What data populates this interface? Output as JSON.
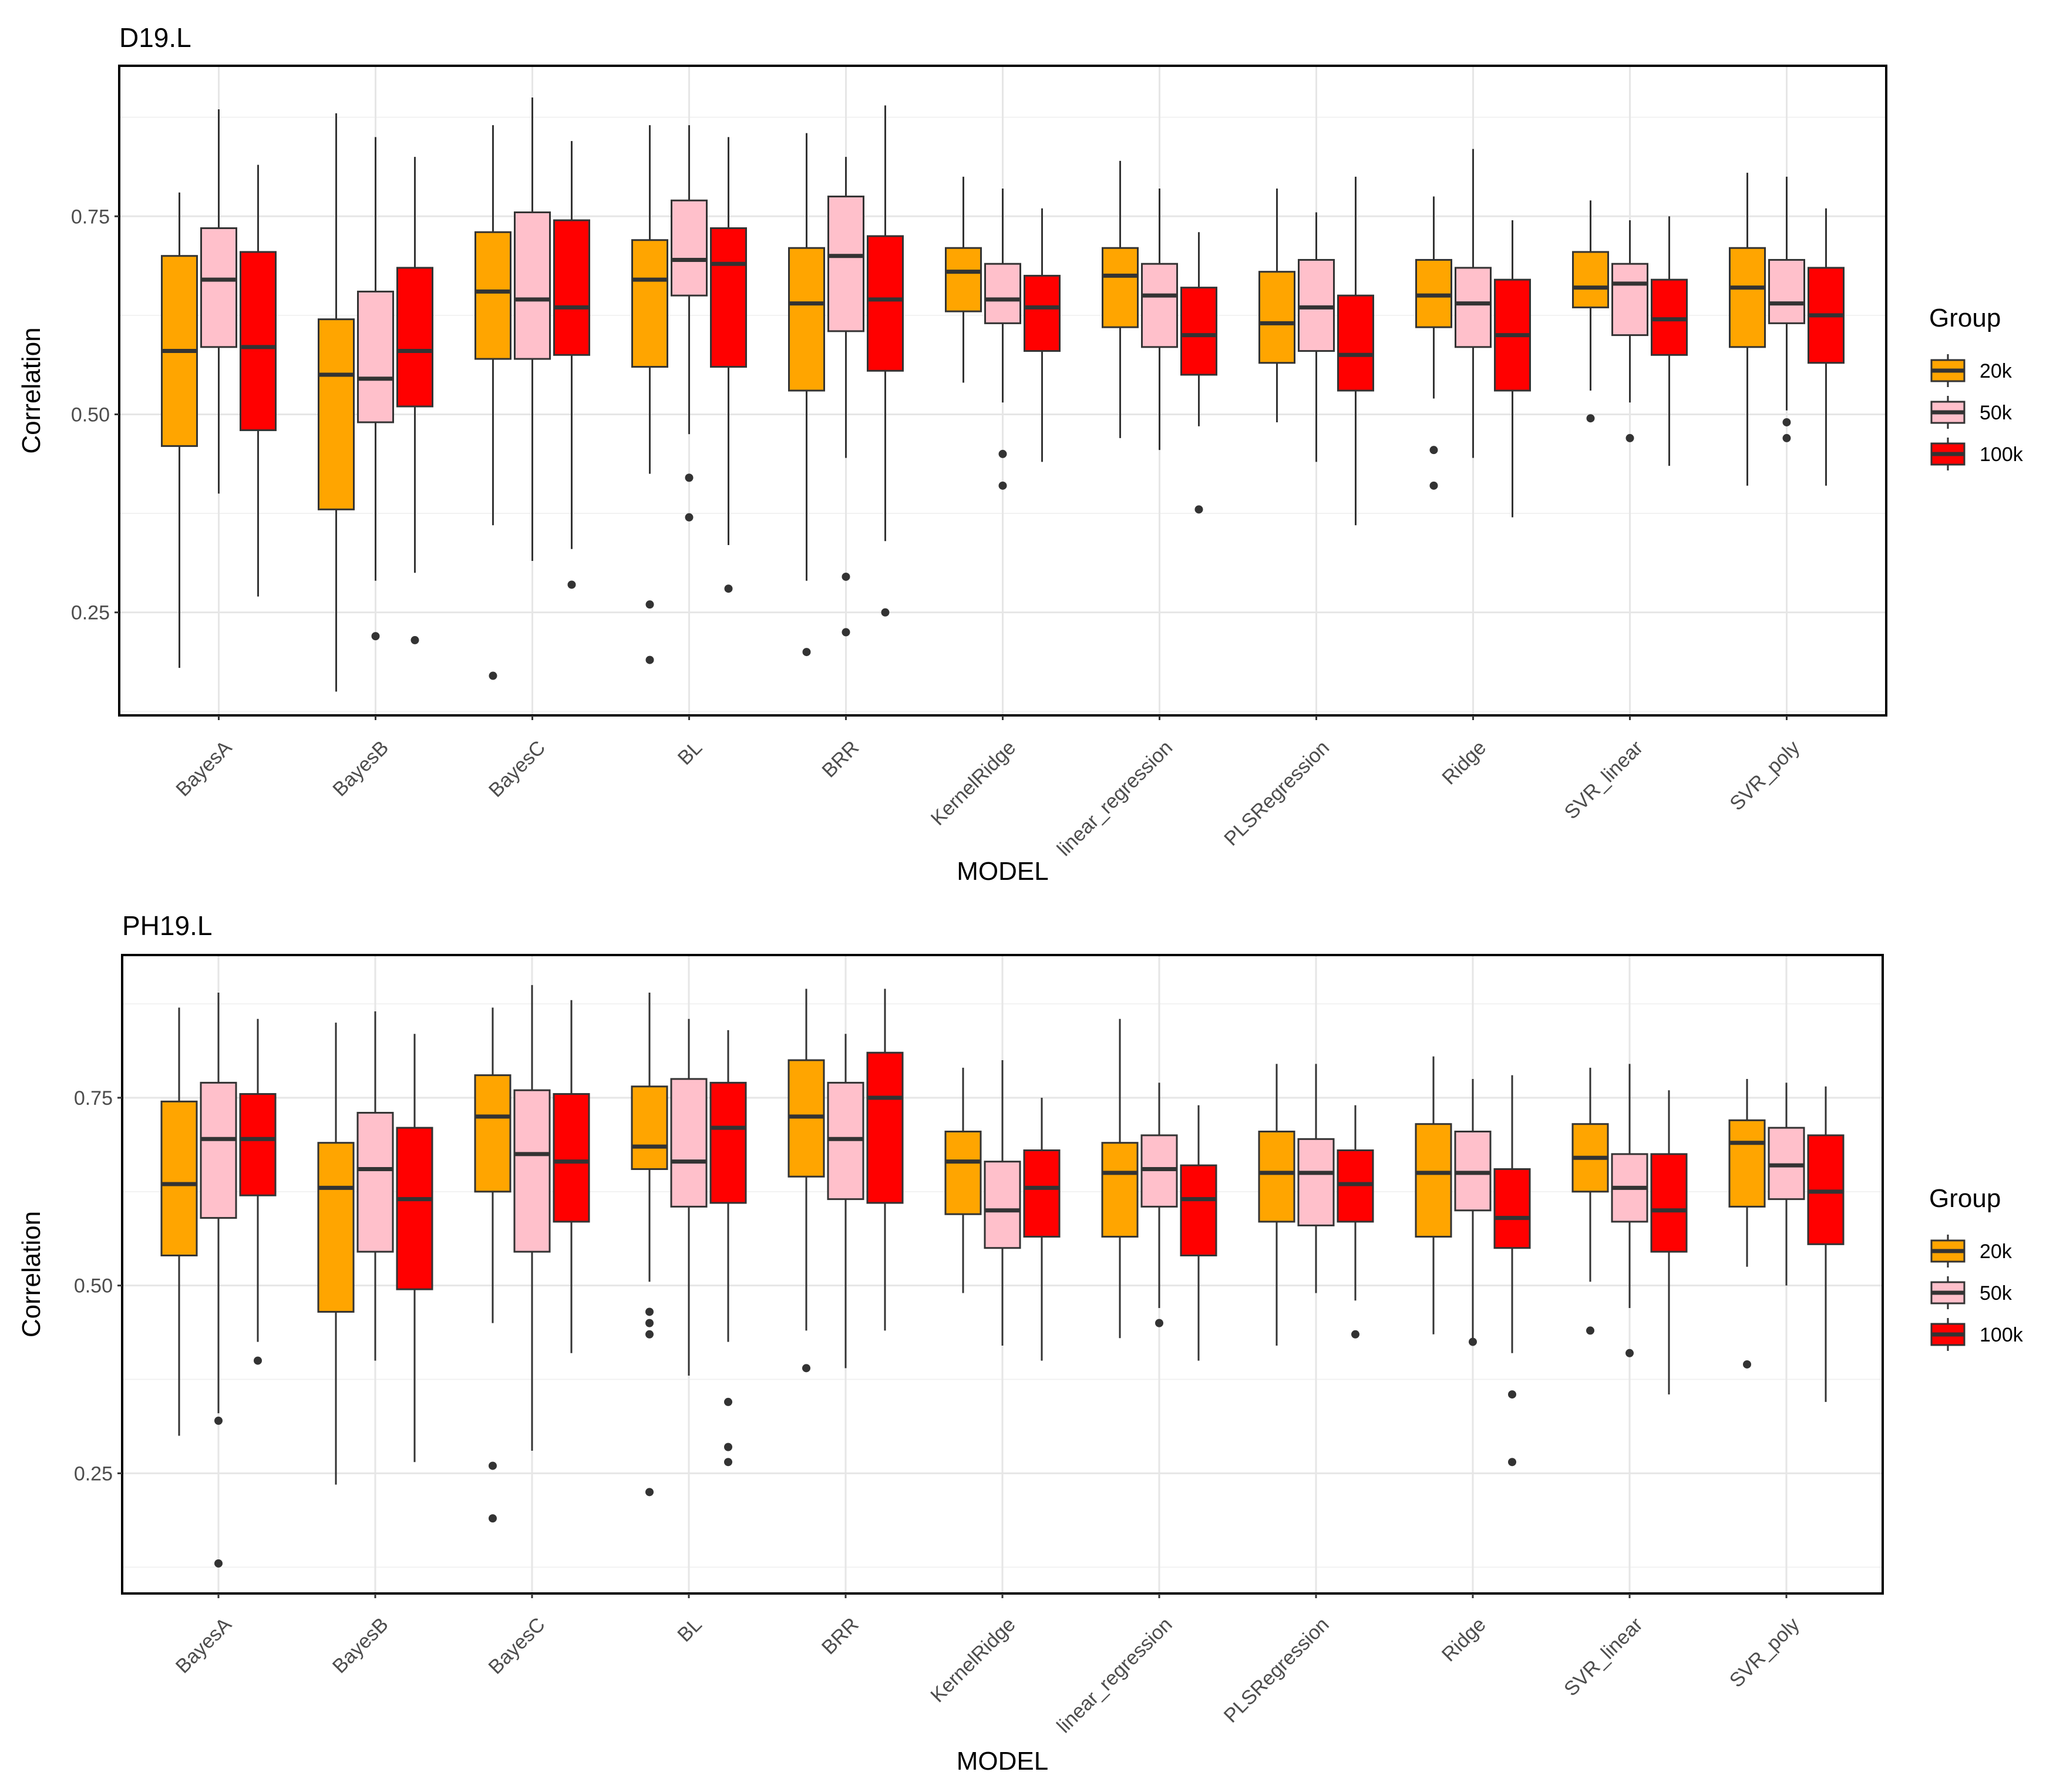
{
  "legend": {
    "title": "Group",
    "items": [
      {
        "label": "20k",
        "color": "#FFA500"
      },
      {
        "label": "50k",
        "color": "#FFC0CB"
      },
      {
        "label": "100k",
        "color": "#FF0000"
      }
    ]
  },
  "chart_data": [
    {
      "type": "boxplot",
      "title": "D19.L",
      "xlabel": "MODEL",
      "ylabel": "Correlation",
      "ylim": [
        0.12,
        0.94
      ],
      "yticks": [
        0.25,
        0.5,
        0.75
      ],
      "ytick_labels": [
        "0.25",
        "0.50",
        "0.75"
      ],
      "grid": true,
      "legend_position": "right",
      "categories": [
        "BayesA",
        "BayesB",
        "BayesC",
        "BL",
        "BRR",
        "KernelRidge",
        "linear_regression",
        "PLSRegression",
        "Ridge",
        "SVR_linear",
        "SVR_poly"
      ],
      "series": [
        {
          "name": "20k",
          "boxes": [
            {
              "lo": 0.18,
              "q1": 0.46,
              "med": 0.58,
              "q3": 0.7,
              "hi": 0.78,
              "out": []
            },
            {
              "lo": 0.15,
              "q1": 0.38,
              "med": 0.55,
              "q3": 0.62,
              "hi": 0.88,
              "out": []
            },
            {
              "lo": 0.36,
              "q1": 0.57,
              "med": 0.655,
              "q3": 0.73,
              "hi": 0.865,
              "out": [
                0.17
              ]
            },
            {
              "lo": 0.425,
              "q1": 0.56,
              "med": 0.67,
              "q3": 0.72,
              "hi": 0.865,
              "out": [
                0.26,
                0.19
              ]
            },
            {
              "lo": 0.29,
              "q1": 0.53,
              "med": 0.64,
              "q3": 0.71,
              "hi": 0.855,
              "out": [
                0.2
              ]
            },
            {
              "lo": 0.54,
              "q1": 0.63,
              "med": 0.68,
              "q3": 0.71,
              "hi": 0.8,
              "out": []
            },
            {
              "lo": 0.47,
              "q1": 0.61,
              "med": 0.675,
              "q3": 0.71,
              "hi": 0.82,
              "out": []
            },
            {
              "lo": 0.49,
              "q1": 0.565,
              "med": 0.615,
              "q3": 0.68,
              "hi": 0.785,
              "out": []
            },
            {
              "lo": 0.52,
              "q1": 0.61,
              "med": 0.65,
              "q3": 0.695,
              "hi": 0.775,
              "out": [
                0.455,
                0.41
              ]
            },
            {
              "lo": 0.53,
              "q1": 0.635,
              "med": 0.66,
              "q3": 0.705,
              "hi": 0.77,
              "out": [
                0.495
              ]
            },
            {
              "lo": 0.41,
              "q1": 0.585,
              "med": 0.66,
              "q3": 0.71,
              "hi": 0.805,
              "out": []
            }
          ]
        },
        {
          "name": "50k",
          "boxes": [
            {
              "lo": 0.4,
              "q1": 0.585,
              "med": 0.67,
              "q3": 0.735,
              "hi": 0.885,
              "out": []
            },
            {
              "lo": 0.29,
              "q1": 0.49,
              "med": 0.545,
              "q3": 0.655,
              "hi": 0.85,
              "out": [
                0.22
              ]
            },
            {
              "lo": 0.315,
              "q1": 0.57,
              "med": 0.645,
              "q3": 0.755,
              "hi": 0.9,
              "out": []
            },
            {
              "lo": 0.475,
              "q1": 0.65,
              "med": 0.695,
              "q3": 0.77,
              "hi": 0.865,
              "out": [
                0.42,
                0.37
              ]
            },
            {
              "lo": 0.445,
              "q1": 0.605,
              "med": 0.7,
              "q3": 0.775,
              "hi": 0.825,
              "out": [
                0.295,
                0.225
              ]
            },
            {
              "lo": 0.515,
              "q1": 0.615,
              "med": 0.645,
              "q3": 0.69,
              "hi": 0.785,
              "out": [
                0.45,
                0.41
              ]
            },
            {
              "lo": 0.455,
              "q1": 0.585,
              "med": 0.65,
              "q3": 0.69,
              "hi": 0.785,
              "out": []
            },
            {
              "lo": 0.44,
              "q1": 0.58,
              "med": 0.635,
              "q3": 0.695,
              "hi": 0.755,
              "out": []
            },
            {
              "lo": 0.445,
              "q1": 0.585,
              "med": 0.64,
              "q3": 0.685,
              "hi": 0.835,
              "out": []
            },
            {
              "lo": 0.515,
              "q1": 0.6,
              "med": 0.665,
              "q3": 0.69,
              "hi": 0.745,
              "out": [
                0.47
              ]
            },
            {
              "lo": 0.505,
              "q1": 0.615,
              "med": 0.64,
              "q3": 0.695,
              "hi": 0.8,
              "out": [
                0.49,
                0.47
              ]
            }
          ]
        },
        {
          "name": "100k",
          "boxes": [
            {
              "lo": 0.27,
              "q1": 0.48,
              "med": 0.585,
              "q3": 0.705,
              "hi": 0.815,
              "out": []
            },
            {
              "lo": 0.3,
              "q1": 0.51,
              "med": 0.58,
              "q3": 0.685,
              "hi": 0.825,
              "out": [
                0.215
              ]
            },
            {
              "lo": 0.33,
              "q1": 0.575,
              "med": 0.635,
              "q3": 0.745,
              "hi": 0.845,
              "out": [
                0.285
              ]
            },
            {
              "lo": 0.335,
              "q1": 0.56,
              "med": 0.69,
              "q3": 0.735,
              "hi": 0.85,
              "out": [
                0.28
              ]
            },
            {
              "lo": 0.34,
              "q1": 0.555,
              "med": 0.645,
              "q3": 0.725,
              "hi": 0.89,
              "out": [
                0.25
              ]
            },
            {
              "lo": 0.44,
              "q1": 0.58,
              "med": 0.635,
              "q3": 0.675,
              "hi": 0.76,
              "out": []
            },
            {
              "lo": 0.485,
              "q1": 0.55,
              "med": 0.6,
              "q3": 0.66,
              "hi": 0.73,
              "out": [
                0.38
              ]
            },
            {
              "lo": 0.36,
              "q1": 0.53,
              "med": 0.575,
              "q3": 0.65,
              "hi": 0.8,
              "out": []
            },
            {
              "lo": 0.37,
              "q1": 0.53,
              "med": 0.6,
              "q3": 0.67,
              "hi": 0.745,
              "out": []
            },
            {
              "lo": 0.435,
              "q1": 0.575,
              "med": 0.62,
              "q3": 0.67,
              "hi": 0.75,
              "out": []
            },
            {
              "lo": 0.41,
              "q1": 0.565,
              "med": 0.625,
              "q3": 0.685,
              "hi": 0.76,
              "out": []
            }
          ]
        }
      ]
    },
    {
      "type": "boxplot",
      "title": "PH19.L",
      "xlabel": "MODEL",
      "ylabel": "Correlation",
      "ylim": [
        0.09,
        0.94
      ],
      "yticks": [
        0.25,
        0.5,
        0.75
      ],
      "ytick_labels": [
        "0.25",
        "0.50",
        "0.75"
      ],
      "grid": true,
      "legend_position": "right",
      "categories": [
        "BayesA",
        "BayesB",
        "BayesC",
        "BL",
        "BRR",
        "KernelRidge",
        "linear_regression",
        "PLSRegression",
        "Ridge",
        "SVR_linear",
        "SVR_poly"
      ],
      "series": [
        {
          "name": "20k",
          "boxes": [
            {
              "lo": 0.3,
              "q1": 0.54,
              "med": 0.635,
              "q3": 0.745,
              "hi": 0.87,
              "out": []
            },
            {
              "lo": 0.235,
              "q1": 0.465,
              "med": 0.63,
              "q3": 0.69,
              "hi": 0.85,
              "out": []
            },
            {
              "lo": 0.45,
              "q1": 0.625,
              "med": 0.725,
              "q3": 0.78,
              "hi": 0.87,
              "out": [
                0.26,
                0.19
              ]
            },
            {
              "lo": 0.505,
              "q1": 0.655,
              "med": 0.685,
              "q3": 0.765,
              "hi": 0.89,
              "out": [
                0.465,
                0.45,
                0.435,
                0.225
              ]
            },
            {
              "lo": 0.44,
              "q1": 0.645,
              "med": 0.725,
              "q3": 0.8,
              "hi": 0.895,
              "out": [
                0.39
              ]
            },
            {
              "lo": 0.49,
              "q1": 0.595,
              "med": 0.665,
              "q3": 0.705,
              "hi": 0.79,
              "out": []
            },
            {
              "lo": 0.43,
              "q1": 0.565,
              "med": 0.65,
              "q3": 0.69,
              "hi": 0.855,
              "out": []
            },
            {
              "lo": 0.42,
              "q1": 0.585,
              "med": 0.65,
              "q3": 0.705,
              "hi": 0.795,
              "out": []
            },
            {
              "lo": 0.435,
              "q1": 0.565,
              "med": 0.65,
              "q3": 0.715,
              "hi": 0.805,
              "out": []
            },
            {
              "lo": 0.505,
              "q1": 0.625,
              "med": 0.67,
              "q3": 0.715,
              "hi": 0.79,
              "out": [
                0.44
              ]
            },
            {
              "lo": 0.525,
              "q1": 0.605,
              "med": 0.69,
              "q3": 0.72,
              "hi": 0.775,
              "out": [
                0.395
              ]
            }
          ]
        },
        {
          "name": "50k",
          "boxes": [
            {
              "lo": 0.33,
              "q1": 0.59,
              "med": 0.695,
              "q3": 0.77,
              "hi": 0.89,
              "out": [
                0.32,
                0.13
              ]
            },
            {
              "lo": 0.4,
              "q1": 0.545,
              "med": 0.655,
              "q3": 0.73,
              "hi": 0.865,
              "out": []
            },
            {
              "lo": 0.28,
              "q1": 0.545,
              "med": 0.675,
              "q3": 0.76,
              "hi": 0.9,
              "out": []
            },
            {
              "lo": 0.38,
              "q1": 0.605,
              "med": 0.665,
              "q3": 0.775,
              "hi": 0.855,
              "out": []
            },
            {
              "lo": 0.39,
              "q1": 0.615,
              "med": 0.695,
              "q3": 0.77,
              "hi": 0.835,
              "out": []
            },
            {
              "lo": 0.42,
              "q1": 0.55,
              "med": 0.6,
              "q3": 0.665,
              "hi": 0.8,
              "out": []
            },
            {
              "lo": 0.47,
              "q1": 0.605,
              "med": 0.655,
              "q3": 0.7,
              "hi": 0.77,
              "out": [
                0.45
              ]
            },
            {
              "lo": 0.49,
              "q1": 0.58,
              "med": 0.65,
              "q3": 0.695,
              "hi": 0.795,
              "out": []
            },
            {
              "lo": 0.43,
              "q1": 0.6,
              "med": 0.65,
              "q3": 0.705,
              "hi": 0.775,
              "out": [
                0.425
              ]
            },
            {
              "lo": 0.47,
              "q1": 0.585,
              "med": 0.63,
              "q3": 0.675,
              "hi": 0.795,
              "out": [
                0.41
              ]
            },
            {
              "lo": 0.5,
              "q1": 0.615,
              "med": 0.66,
              "q3": 0.71,
              "hi": 0.77,
              "out": []
            }
          ]
        },
        {
          "name": "100k",
          "boxes": [
            {
              "lo": 0.425,
              "q1": 0.62,
              "med": 0.695,
              "q3": 0.755,
              "hi": 0.855,
              "out": [
                0.4
              ]
            },
            {
              "lo": 0.265,
              "q1": 0.495,
              "med": 0.615,
              "q3": 0.71,
              "hi": 0.835,
              "out": []
            },
            {
              "lo": 0.41,
              "q1": 0.585,
              "med": 0.665,
              "q3": 0.755,
              "hi": 0.88,
              "out": []
            },
            {
              "lo": 0.425,
              "q1": 0.61,
              "med": 0.71,
              "q3": 0.77,
              "hi": 0.84,
              "out": [
                0.345,
                0.285,
                0.265
              ]
            },
            {
              "lo": 0.44,
              "q1": 0.61,
              "med": 0.75,
              "q3": 0.81,
              "hi": 0.895,
              "out": []
            },
            {
              "lo": 0.4,
              "q1": 0.565,
              "med": 0.63,
              "q3": 0.68,
              "hi": 0.75,
              "out": []
            },
            {
              "lo": 0.4,
              "q1": 0.54,
              "med": 0.615,
              "q3": 0.66,
              "hi": 0.74,
              "out": []
            },
            {
              "lo": 0.48,
              "q1": 0.585,
              "med": 0.635,
              "q3": 0.68,
              "hi": 0.74,
              "out": [
                0.435
              ]
            },
            {
              "lo": 0.41,
              "q1": 0.55,
              "med": 0.59,
              "q3": 0.655,
              "hi": 0.78,
              "out": [
                0.355,
                0.265
              ]
            },
            {
              "lo": 0.355,
              "q1": 0.545,
              "med": 0.6,
              "q3": 0.675,
              "hi": 0.76,
              "out": []
            },
            {
              "lo": 0.345,
              "q1": 0.555,
              "med": 0.625,
              "q3": 0.7,
              "hi": 0.765,
              "out": []
            }
          ]
        }
      ]
    }
  ]
}
